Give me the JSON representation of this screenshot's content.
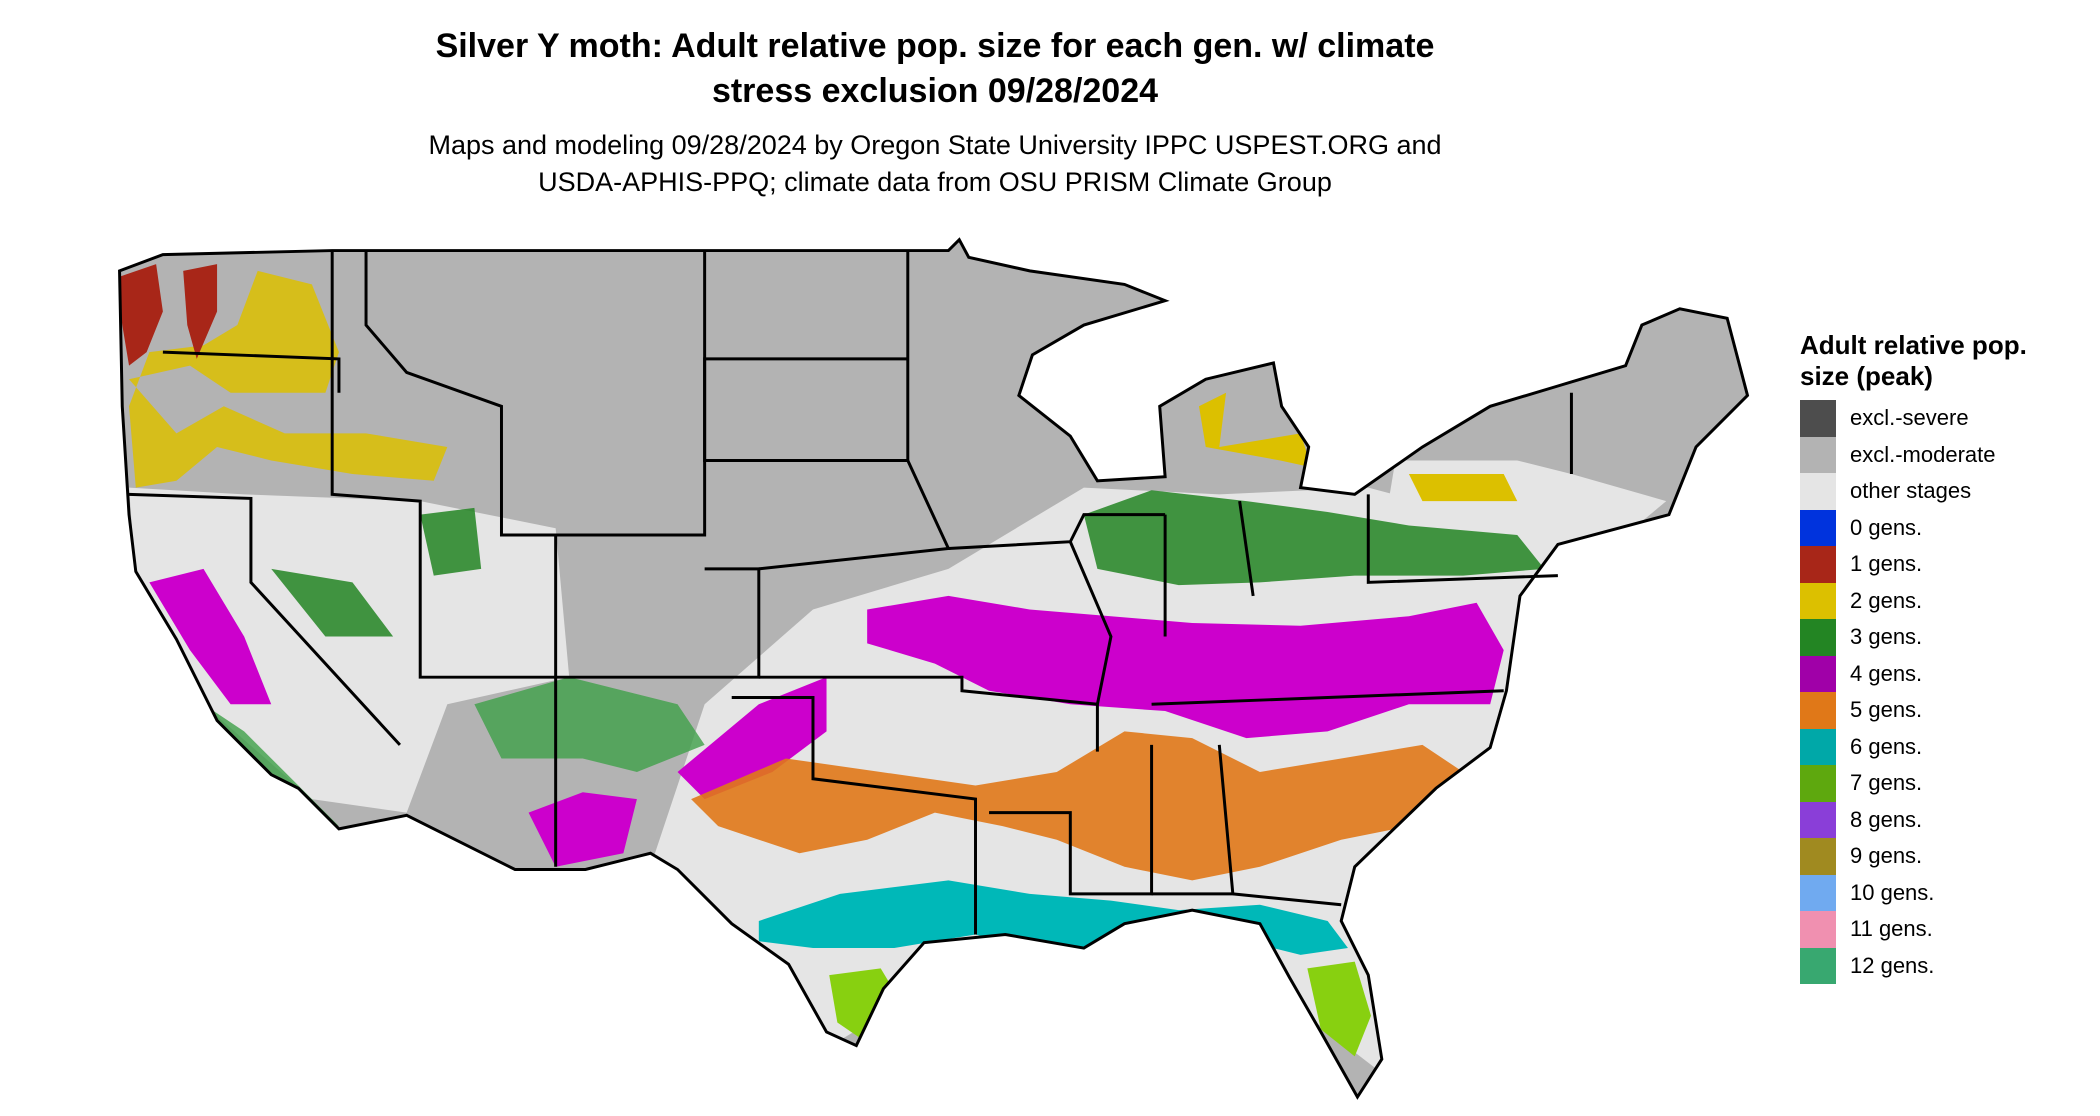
{
  "title": {
    "line1": "Silver Y moth: Adult relative pop. size for each gen. w/ climate",
    "line2": "stress exclusion 09/28/2024"
  },
  "subtitle": {
    "line1": "Maps and modeling 09/28/2024 by Oregon State University IPPC USPEST.ORG and",
    "line2": "USDA-APHIS-PPQ; climate data from OSU PRISM Climate Group"
  },
  "legend": {
    "title": "Adult relative pop. size (peak)",
    "items": [
      {
        "label": "excl.-severe",
        "color": "#4d4d4d"
      },
      {
        "label": "excl.-moderate",
        "color": "#b3b3b3"
      },
      {
        "label": "other stages",
        "color": "#e5e5e5"
      },
      {
        "label": "0 gens.",
        "color": "#0033dd"
      },
      {
        "label": "1 gens.",
        "color": "#a82618"
      },
      {
        "label": "2 gens.",
        "color": "#dcc000"
      },
      {
        "label": "3 gens.",
        "color": "#238523"
      },
      {
        "label": "4 gens.",
        "color": "#a000a8"
      },
      {
        "label": "5 gens.",
        "color": "#e07818"
      },
      {
        "label": "6 gens.",
        "color": "#00a8a8"
      },
      {
        "label": "7 gens.",
        "color": "#5ea80e"
      },
      {
        "label": "8 gens.",
        "color": "#8a3ed8"
      },
      {
        "label": "9 gens.",
        "color": "#a08a20"
      },
      {
        "label": "10 gens.",
        "color": "#70aaf0"
      },
      {
        "label": "11 gens.",
        "color": "#f090b0"
      },
      {
        "label": "12 gens.",
        "color": "#38a870"
      }
    ]
  }
}
